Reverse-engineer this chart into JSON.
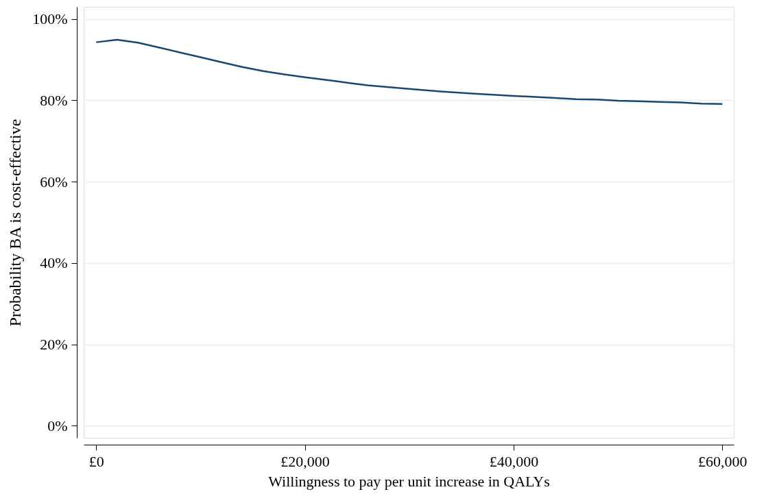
{
  "chart_data": {
    "type": "line",
    "xlabel": "Willingness to pay per unit increase in QALYs",
    "ylabel": "Probability BA is cost-effective",
    "x": [
      0,
      2000,
      4000,
      6000,
      8000,
      10000,
      12000,
      14000,
      16000,
      18000,
      20000,
      23000,
      26000,
      30000,
      33000,
      36000,
      38000,
      40000,
      44000,
      46000,
      48000,
      50000,
      52000,
      54000,
      56000,
      58000,
      60000
    ],
    "series": [
      {
        "color": "#1a476f",
        "values": [
          94.3,
          94.9,
          94.2,
          93.0,
          91.8,
          90.6,
          89.4,
          88.2,
          87.2,
          86.4,
          85.7,
          84.7,
          83.7,
          82.8,
          82.2,
          81.7,
          81.4,
          81.1,
          80.6,
          80.3,
          80.2,
          79.9,
          79.8,
          79.6,
          79.5,
          79.2,
          79.1
        ]
      }
    ],
    "xlim": [
      -1200,
      61100
    ],
    "ylim": [
      -3,
      103
    ],
    "xticks": [
      {
        "value": 0,
        "label": "£0"
      },
      {
        "value": 20000,
        "label": "£20,000"
      },
      {
        "value": 40000,
        "label": "£40,000"
      },
      {
        "value": 60000,
        "label": "£60,000"
      }
    ],
    "yticks": [
      {
        "value": 0,
        "label": "0%"
      },
      {
        "value": 20,
        "label": "20%"
      },
      {
        "value": 40,
        "label": "40%"
      },
      {
        "value": 60,
        "label": "60%"
      },
      {
        "value": 80,
        "label": "80%"
      },
      {
        "value": 100,
        "label": "100%"
      }
    ],
    "grid": "y",
    "marker": "none",
    "line_style": "solid"
  }
}
